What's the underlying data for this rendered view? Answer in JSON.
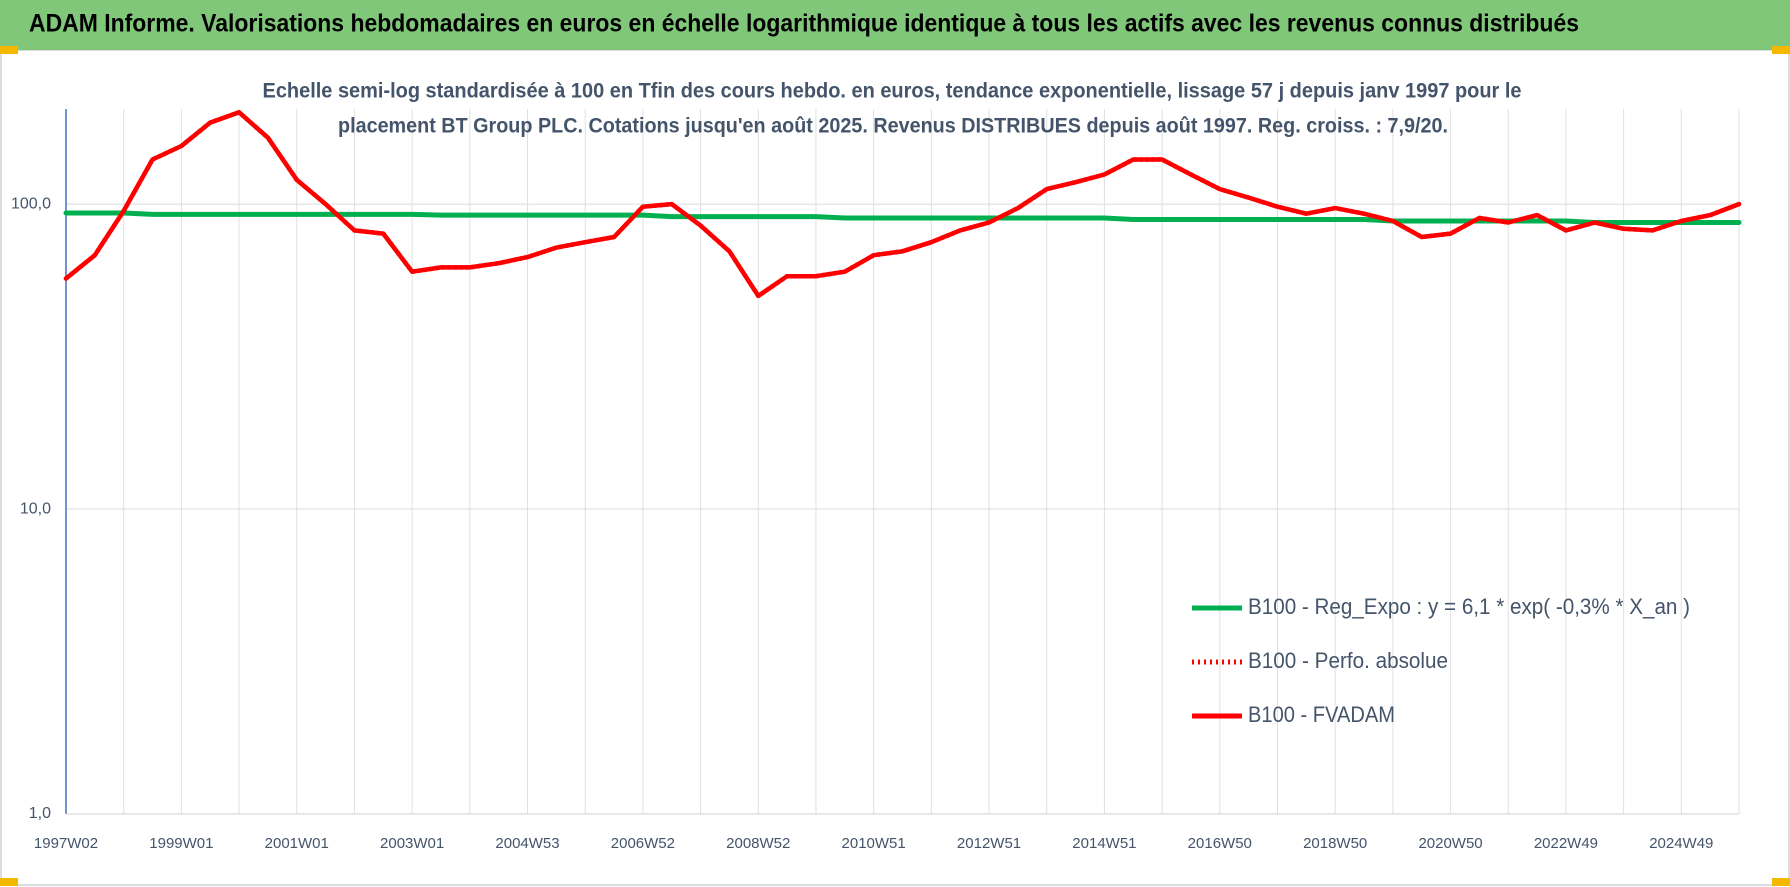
{
  "chart_data": {
    "type": "line",
    "title": "ADAM Informe. Valorisations hebdomadaires en euros en échelle logarithmique identique à tous les actifs avec les revenus connus distribués",
    "subtitle": [
      "Echelle semi-log standardisée à 100 en Tfin des cours hebdo. en euros, tendance exponentielle, lissage 57 j depuis janv 1997 pour le",
      "placement BT Group PLC. Cotations jusqu'en août 2025. Revenus DISTRIBUES depuis août 1997. Reg. croiss. : 7,9/20."
    ],
    "categories": [
      "1997W02",
      null,
      null,
      null,
      "1999W01",
      null,
      null,
      null,
      "2001W01",
      null,
      null,
      null,
      "2003W01",
      null,
      null,
      null,
      "2004W53",
      null,
      null,
      null,
      "2006W52",
      null,
      null,
      null,
      "2008W52",
      null,
      null,
      null,
      "2010W51",
      null,
      null,
      null,
      "2012W51",
      null,
      null,
      null,
      "2014W51",
      null,
      null,
      null,
      "2016W50",
      null,
      null,
      null,
      "2018W50",
      null,
      null,
      null,
      "2020W50",
      null,
      null,
      null,
      "2022W49",
      null,
      null,
      null,
      "2024W49",
      null,
      null
    ],
    "log_scale": true,
    "ylim": [
      1,
      205
    ],
    "yticks": [
      {
        "value": 1,
        "label": "1,0"
      },
      {
        "value": 10,
        "label": "10,0"
      },
      {
        "value": 100,
        "label": "100,0"
      }
    ],
    "grid": true,
    "legend": "right",
    "series": [
      {
        "name": "B100 - Reg_Expo : y = 6,1 * exp( -0,3% *  X_an )",
        "color": "#00b050",
        "dash": "solid",
        "values": [
          93.5,
          93.5,
          93.5,
          92.5,
          92.5,
          92.5,
          92.5,
          92.5,
          92.5,
          92.5,
          92.5,
          92.5,
          92.5,
          92,
          92,
          92,
          92,
          92,
          92,
          92,
          92,
          91,
          91,
          91,
          91,
          91,
          91,
          90,
          90,
          90,
          90,
          90,
          90,
          90,
          90,
          90,
          90,
          89,
          89,
          89,
          89,
          89,
          89,
          89,
          89,
          89,
          88,
          88,
          88,
          88,
          88,
          88,
          88,
          87,
          87,
          87,
          87,
          87,
          87
        ]
      },
      {
        "name": "B100 - Perfo. absolue",
        "color": "#ff0000",
        "dash": "dotted",
        "values": [
          57,
          68,
          95,
          140,
          155,
          185,
          200,
          165,
          120,
          100,
          82,
          80,
          60,
          62,
          62,
          64,
          67,
          72,
          75,
          78,
          98,
          100,
          85,
          70,
          50,
          58,
          58,
          60,
          68,
          70,
          75,
          82,
          87,
          97,
          112,
          118,
          125,
          140,
          140,
          125,
          112,
          105,
          98,
          93,
          97,
          93,
          88,
          78,
          80,
          90,
          87,
          92,
          82,
          87,
          83,
          82,
          88,
          92,
          100
        ]
      },
      {
        "name": "B100 - FVADAM",
        "color": "#ff0000",
        "dash": "solid",
        "values": [
          57,
          68,
          95,
          140,
          155,
          185,
          200,
          165,
          120,
          100,
          82,
          80,
          60,
          62,
          62,
          64,
          67,
          72,
          75,
          78,
          98,
          100,
          85,
          70,
          50,
          58,
          58,
          60,
          68,
          70,
          75,
          82,
          87,
          97,
          112,
          118,
          125,
          140,
          140,
          125,
          112,
          105,
          98,
          93,
          97,
          93,
          88,
          78,
          80,
          90,
          87,
          92,
          82,
          87,
          83,
          82,
          88,
          92,
          100
        ]
      }
    ]
  }
}
